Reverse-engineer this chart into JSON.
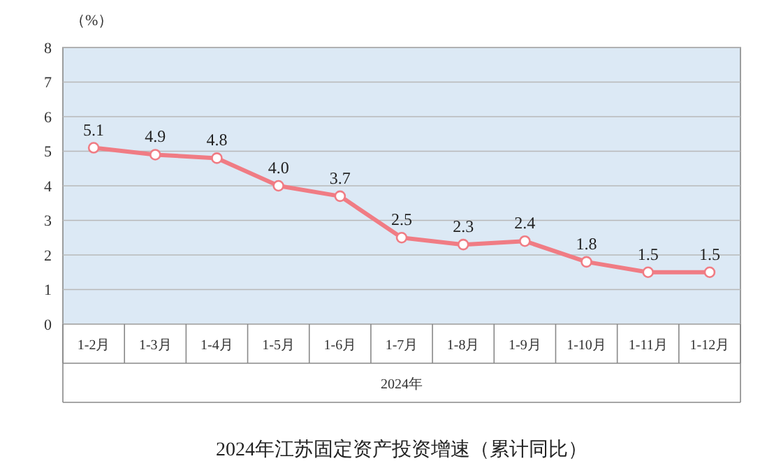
{
  "chart_data": {
    "type": "line",
    "title": "2024年江苏固定资产投资增速（累计同比）",
    "xlabel": "2024年",
    "ylabel": "（%）",
    "categories": [
      "1-2月",
      "1-3月",
      "1-4月",
      "1-5月",
      "1-6月",
      "1-7月",
      "1-8月",
      "1-9月",
      "1-10月",
      "1-11月",
      "1-12月"
    ],
    "series": [
      {
        "color": "#f07c84",
        "values": [
          5.1,
          4.9,
          4.8,
          4.0,
          3.7,
          2.5,
          2.3,
          2.4,
          1.8,
          1.5,
          1.5
        ],
        "value_labels": [
          "5.1",
          "4.9",
          "4.8",
          "4.0",
          "3.7",
          "2.5",
          "2.3",
          "2.4",
          "1.8",
          "1.5",
          "1.5"
        ]
      }
    ],
    "ylim": [
      0,
      8
    ],
    "yticks": [
      0,
      1,
      2,
      3,
      4,
      5,
      6,
      7,
      8
    ],
    "grid": "y",
    "marker": "circle"
  }
}
